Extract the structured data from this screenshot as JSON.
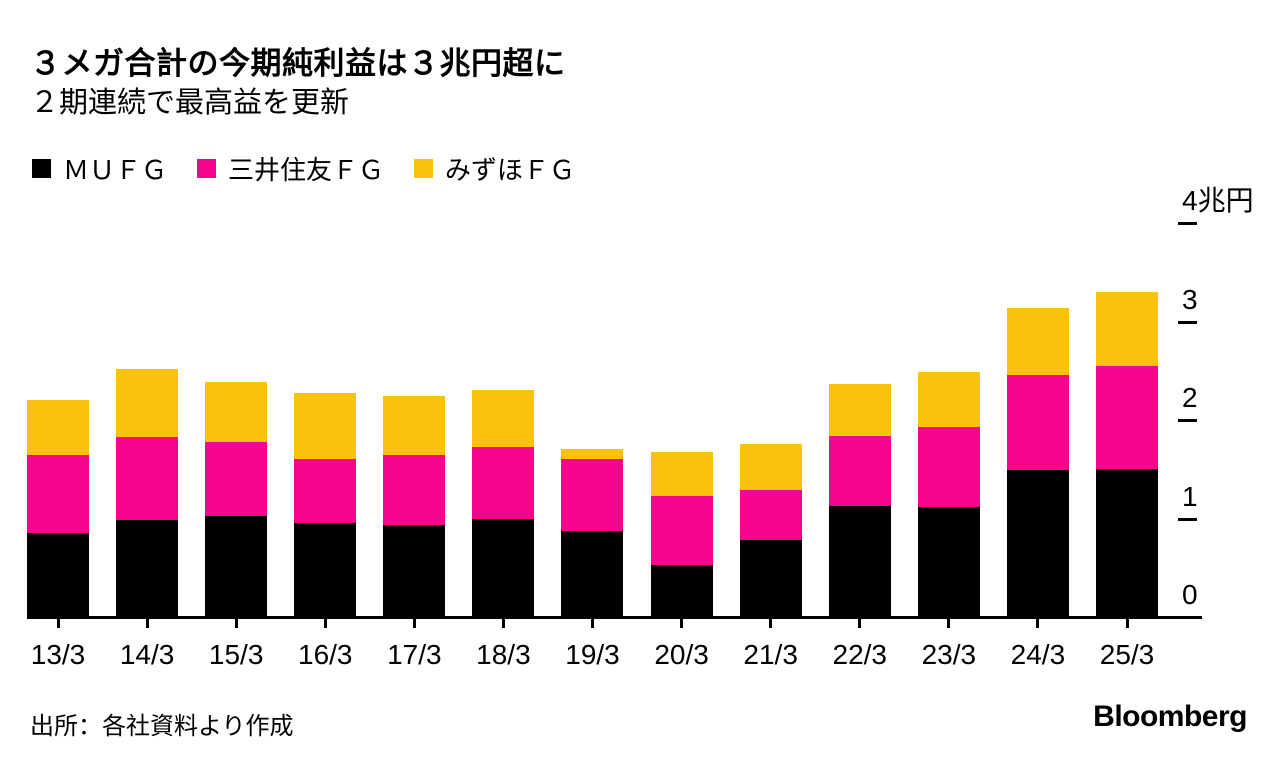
{
  "header": {
    "title": "３メガ合計の今期純利益は３兆円超に",
    "subtitle": "２期連続で最高益を更新"
  },
  "legend": {
    "items": [
      {
        "label": "ＭＵＦＧ",
        "color": "#000000"
      },
      {
        "label": "三井住友ＦＧ",
        "color": "#F6068D"
      },
      {
        "label": "みずほＦＧ",
        "color": "#F8C30A"
      }
    ]
  },
  "chart_data": {
    "type": "bar",
    "stacked": true,
    "unit": "兆円",
    "categories": [
      "13/3",
      "14/3",
      "15/3",
      "16/3",
      "17/3",
      "18/3",
      "19/3",
      "20/3",
      "21/3",
      "22/3",
      "23/3",
      "24/3",
      "25/3"
    ],
    "series": [
      {
        "name": "ＭＵＦＧ",
        "color": "#000000",
        "values": [
          0.85,
          0.98,
          1.03,
          0.95,
          0.93,
          0.99,
          0.87,
          0.53,
          0.78,
          1.13,
          1.12,
          1.49,
          1.5
        ]
      },
      {
        "name": "三井住友ＦＧ",
        "color": "#F6068D",
        "values": [
          0.79,
          0.84,
          0.75,
          0.65,
          0.71,
          0.73,
          0.73,
          0.7,
          0.51,
          0.71,
          0.81,
          0.96,
          1.05
        ]
      },
      {
        "name": "みずほＦＧ",
        "color": "#F8C30A",
        "values": [
          0.56,
          0.69,
          0.61,
          0.67,
          0.6,
          0.58,
          0.1,
          0.45,
          0.47,
          0.53,
          0.56,
          0.68,
          0.75
        ]
      }
    ],
    "ylim": [
      0,
      4
    ],
    "y_ticks": [
      {
        "value": 4,
        "label": "4兆円"
      },
      {
        "value": 3,
        "label": "3"
      },
      {
        "value": 2,
        "label": "2"
      },
      {
        "value": 1,
        "label": "1"
      },
      {
        "value": 0,
        "label": "0"
      }
    ],
    "grid": false,
    "legend_position": "top"
  },
  "footer": {
    "source": "出所：各社資料より作成",
    "brand": "Bloomberg"
  }
}
